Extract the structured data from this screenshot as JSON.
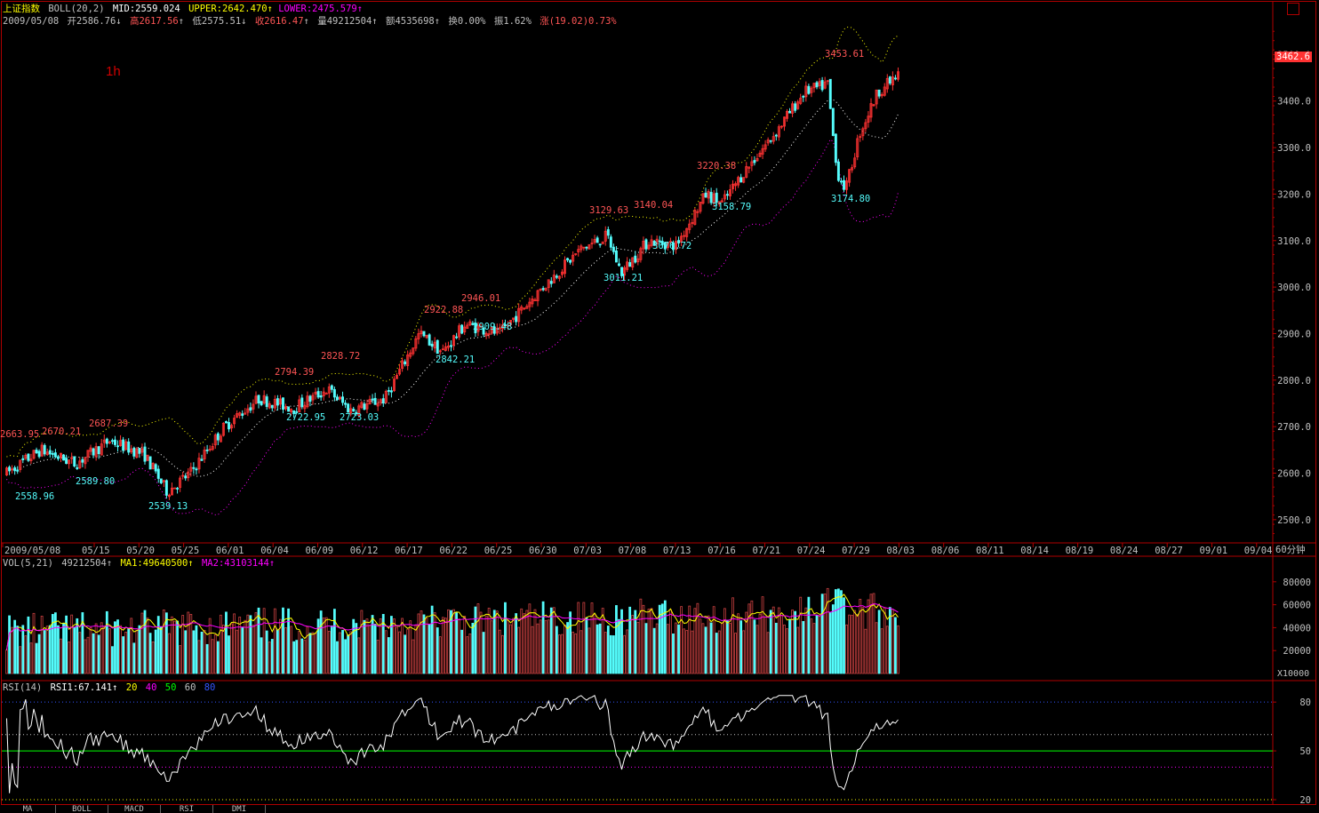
{
  "main_header": {
    "index_name": "上证指数",
    "indicator": "BOLL(20,2)",
    "mid": "MID:2559.024",
    "upper": "UPPER:2642.470",
    "upper_arrow": "↑",
    "lower": "LOWER:2475.579",
    "lower_arrow": "↑"
  },
  "quote_line": {
    "date": "2009/05/08",
    "open": "开2586.76",
    "open_arrow": "↓",
    "high": "高2617.56",
    "high_arrow": "↑",
    "low": "低2575.51",
    "low_arrow": "↓",
    "close": "收2616.47",
    "close_arrow": "↑",
    "volume": "量49212504",
    "volume_arrow": "↑",
    "amount": "额4535698",
    "amount_arrow": "↑",
    "turnover": "换0.00%",
    "amplitude": "振1.62%",
    "change": "涨(19.02)0.73%"
  },
  "period_badge": "1h",
  "period_label": "60分钟",
  "price_axis": [
    "3500.0",
    "3400.0",
    "3300.0",
    "3200.0",
    "3100.0",
    "3000.0",
    "2900.0",
    "2800.0",
    "2700.0",
    "2600.0",
    "2500.0"
  ],
  "last_price": "3462.6",
  "date_axis": [
    "2009/05/08",
    "05/15",
    "05/20",
    "05/25",
    "06/01",
    "06/04",
    "06/09",
    "06/12",
    "06/17",
    "06/22",
    "06/25",
    "06/30",
    "07/03",
    "07/08",
    "07/13",
    "07/16",
    "07/21",
    "07/24",
    "07/29",
    "08/03",
    "08/06",
    "08/11",
    "08/14",
    "08/19",
    "08/24",
    "08/27",
    "09/01",
    "09/04"
  ],
  "price_annotations": [
    {
      "text": "2663.95",
      "kind": "high"
    },
    {
      "text": "2670.21",
      "kind": "high"
    },
    {
      "text": "2687.39",
      "kind": "high"
    },
    {
      "text": "2558.96",
      "kind": "low"
    },
    {
      "text": "2589.80",
      "kind": "low"
    },
    {
      "text": "2539.13",
      "kind": "low"
    },
    {
      "text": "2794.39",
      "kind": "high"
    },
    {
      "text": "2828.72",
      "kind": "high"
    },
    {
      "text": "2722.95",
      "kind": "low"
    },
    {
      "text": "2723.03",
      "kind": "low"
    },
    {
      "text": "2922.88",
      "kind": "high"
    },
    {
      "text": "2946.01",
      "kind": "high"
    },
    {
      "text": "2909.48",
      "kind": "low"
    },
    {
      "text": "2842.21",
      "kind": "low"
    },
    {
      "text": "3129.63",
      "kind": "high"
    },
    {
      "text": "3140.04",
      "kind": "high"
    },
    {
      "text": "3011.21",
      "kind": "low"
    },
    {
      "text": "3076.72",
      "kind": "low"
    },
    {
      "text": "3220.38",
      "kind": "high"
    },
    {
      "text": "3158.79",
      "kind": "low"
    },
    {
      "text": "3453.61",
      "kind": "high"
    },
    {
      "text": "3174.80",
      "kind": "low"
    }
  ],
  "vol_header": {
    "label": "VOL(5,21)",
    "value": "49212504",
    "value_arrow": "↑",
    "ma1": "MA1:49640500",
    "ma1_arrow": "↑",
    "ma2": "MA2:43103144",
    "ma2_arrow": "↑"
  },
  "vol_axis": [
    "80000",
    "60000",
    "40000",
    "20000"
  ],
  "vol_unit": "X10000",
  "rsi_header": {
    "label": "RSI(14)",
    "value": "RSI1:67.141",
    "value_arrow": "↑",
    "l20": "20",
    "l40": "40",
    "l50": "50",
    "l60": "60",
    "l80": "80"
  },
  "rsi_axis": [
    "80",
    "50",
    "20"
  ],
  "bottom_tabs": [
    "MA",
    "BOLL",
    "MACD",
    "RSI",
    "DMI"
  ],
  "colors": {
    "up": "#ff3232",
    "down": "#54fcfc",
    "frame": "#b00000",
    "mid": "#ffffff",
    "upper": "#ffff00",
    "lower": "#ff00ff",
    "high_label": "#ff5555",
    "low_label": "#54fcfc",
    "rsi": "#ffffff",
    "rsi_base": "#00ff00"
  },
  "chart_data": {
    "type": "candlestick",
    "ylim": [
      2450,
      3560
    ],
    "x_range": [
      "2009/05/08",
      "2009/09/04"
    ],
    "bollinger_anchor_mid": [
      2580,
      2600,
      2640,
      2700,
      2750,
      2790,
      2850,
      2940,
      3020,
      3080,
      3120,
      3200,
      3280,
      3370,
      3380
    ],
    "bollinger_anchor_upper": [
      2650,
      2680,
      2700,
      2760,
      2830,
      2850,
      2930,
      3000,
      3110,
      3150,
      3220,
      3300,
      3430,
      3480,
      3510
    ],
    "bollinger_anchor_lower": [
      2510,
      2530,
      2510,
      2600,
      2700,
      2710,
      2780,
      2860,
      2940,
      3000,
      3040,
      3100,
      3170,
      3230,
      3240
    ],
    "rsi_range": [
      20,
      85
    ],
    "rsi_last": 67.141
  }
}
